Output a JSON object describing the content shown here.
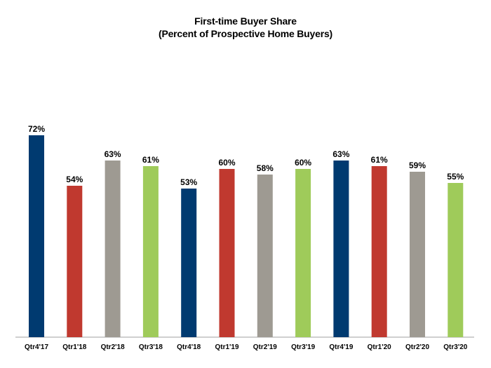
{
  "chart_data": {
    "type": "bar",
    "title": "First-time Buyer Share",
    "subtitle": "(Percent of Prospective Home Buyers)",
    "xlabel": "",
    "ylabel": "",
    "ylim": [
      0,
      80
    ],
    "grid": false,
    "categories": [
      "Qtr4'17",
      "Qtr1'18",
      "Qtr2'18",
      "Qtr3'18",
      "Qtr4'18",
      "Qtr1'19",
      "Qtr2'19",
      "Qtr3'19",
      "Qtr4'19",
      "Qtr1'20",
      "Qtr2'20",
      "Qtr3'20"
    ],
    "values": [
      72,
      54,
      63,
      61,
      53,
      60,
      58,
      60,
      63,
      61,
      59,
      55
    ],
    "value_labels": [
      "72%",
      "54%",
      "63%",
      "61%",
      "53%",
      "60%",
      "58%",
      "60%",
      "63%",
      "61%",
      "59%",
      "55%"
    ],
    "colors": [
      "#003a70",
      "#c0392f",
      "#9e9a92",
      "#9fcb5a",
      "#003a70",
      "#c0392f",
      "#9e9a92",
      "#9fcb5a",
      "#003a70",
      "#c0392f",
      "#9e9a92",
      "#9fcb5a"
    ],
    "axis_color": "#a0a0a0"
  }
}
